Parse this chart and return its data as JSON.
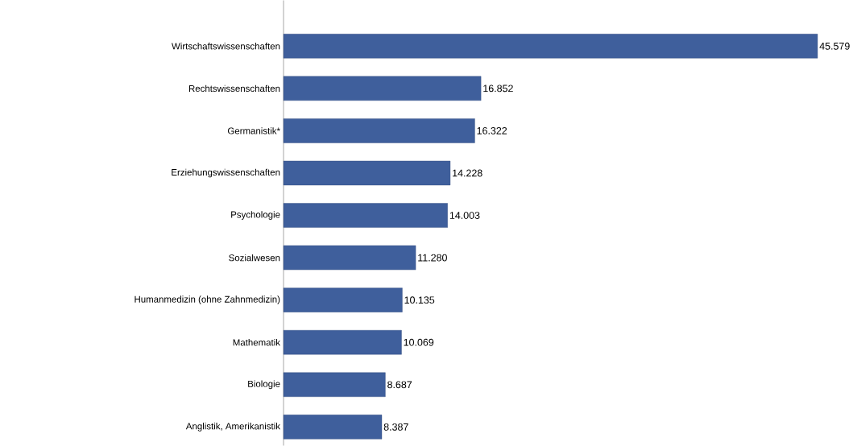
{
  "chart_data": {
    "type": "bar",
    "orientation": "horizontal",
    "color": "#3f5f9c",
    "categories": [
      "Wirtschaftswissenschaften",
      "Rechtswissenschaften",
      "Germanistik*",
      "Erziehungswissenschaften",
      "Psychologie",
      "Sozialwesen",
      "Humanmedizin (ohne Zahnmedizin)",
      "Mathematik",
      "Biologie",
      "Anglistik, Amerikanistik"
    ],
    "values": [
      45579,
      16852,
      16322,
      14228,
      14003,
      11280,
      10135,
      10069,
      8687,
      8387
    ],
    "value_labels": [
      "45.579",
      "16.852",
      "16.322",
      "14.228",
      "14.003",
      "11.280",
      "10.135",
      "10.069",
      "8.687",
      "8.387"
    ]
  }
}
